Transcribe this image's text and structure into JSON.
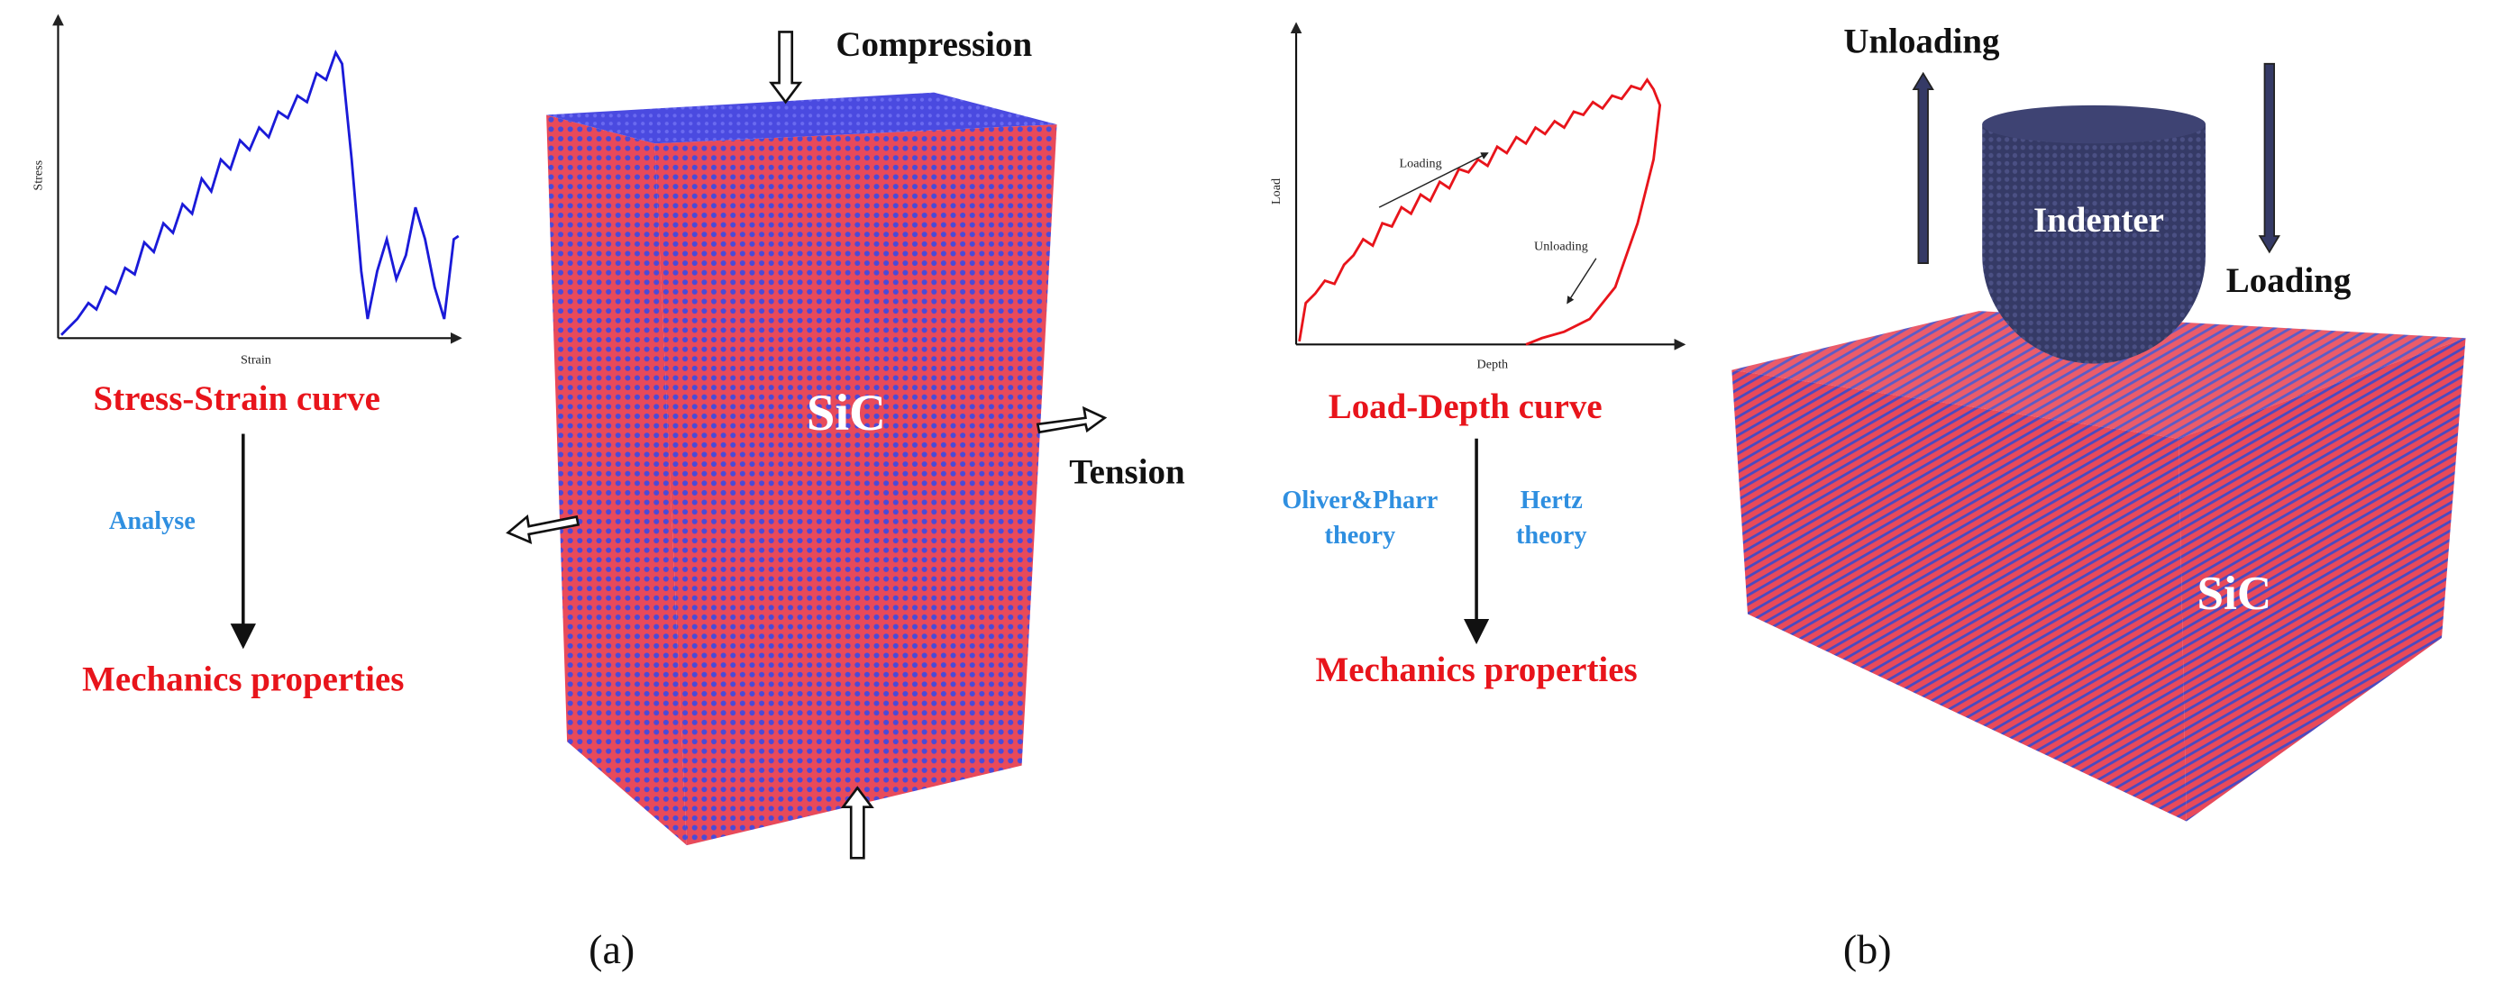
{
  "panel_a": {
    "plot": {
      "y_label": "Stress",
      "x_label": "Strain"
    },
    "curve_title": "Stress-Strain curve",
    "step": "Analyse",
    "result": "Mechanics properties",
    "sample": {
      "material": "SiC",
      "load_top": "Compression",
      "load_side": "Tension"
    },
    "caption": "(a)"
  },
  "panel_b": {
    "plot": {
      "y_label": "Load",
      "x_label": "Depth",
      "loading_note": "Loading",
      "unloading_note": "Unloading"
    },
    "curve_title": "Load-Depth curve",
    "method_left": [
      "Oliver&Pharr",
      "theory"
    ],
    "method_right": [
      "Hertz",
      "theory"
    ],
    "result": "Mechanics properties",
    "indenter": "Indenter",
    "up_label": "Unloading",
    "down_label": "Loading",
    "material": "SiC",
    "caption": "(b)"
  }
}
